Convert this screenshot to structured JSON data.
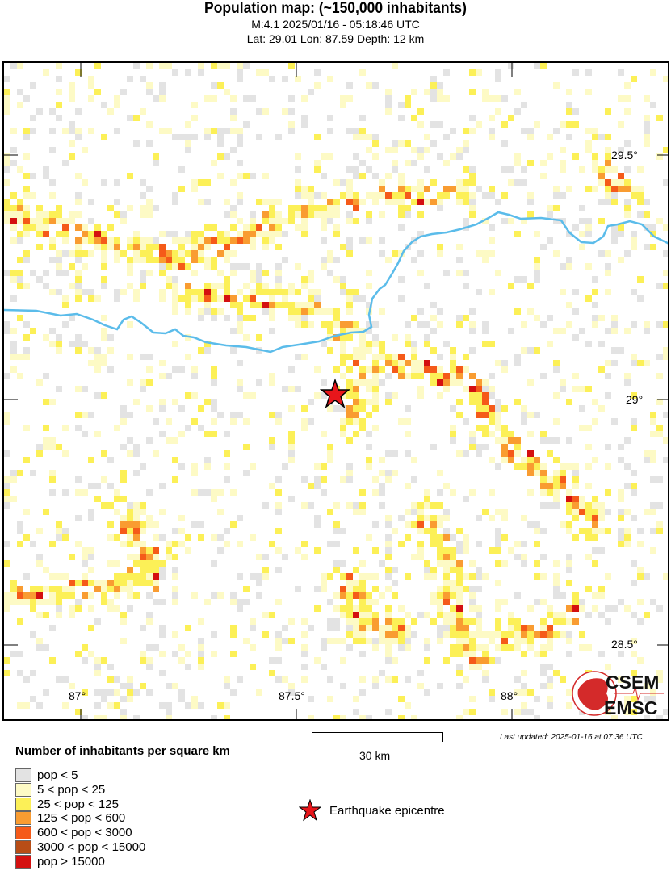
{
  "header": {
    "title": "Population map: (~150,000 inhabitants)",
    "event_line": "M:4.1 2025/01/16 - 05:18:46 UTC",
    "location_line": "Lat: 29.01 Lon: 87.59 Depth: 12 km"
  },
  "map": {
    "lon_ticks": [
      "87°",
      "87.5°",
      "88°"
    ],
    "lat_ticks": [
      "29.5°",
      "29°",
      "28.5°"
    ],
    "epicentre": {
      "lat": 29.01,
      "lon": 87.59,
      "icon": "red-star-icon",
      "color": "#e8161b"
    },
    "river_color": "#5bbcea"
  },
  "scale_bar": {
    "label": "30 km"
  },
  "last_updated": "Last updated: 2025-01-16 at 07:36 UTC",
  "logo": {
    "top": "CSEM",
    "bottom": "EMSC",
    "color": "#d42a2a"
  },
  "legend": {
    "title": "Number of inhabitants per square km",
    "items": [
      {
        "label": "pop < 5",
        "color": "#e3e3e3"
      },
      {
        "label": "5 < pop < 25",
        "color": "#fdfac5"
      },
      {
        "label": "25 < pop < 125",
        "color": "#fcf057"
      },
      {
        "label": "125 < pop < 600",
        "color": "#f99c31"
      },
      {
        "label": "600 < pop < 3000",
        "color": "#f55a19"
      },
      {
        "label": "3000 < pop < 15000",
        "color": "#b84d16"
      },
      {
        "label": "pop > 15000",
        "color": "#d41010"
      }
    ],
    "epicentre_label": "Earthquake epicentre"
  }
}
